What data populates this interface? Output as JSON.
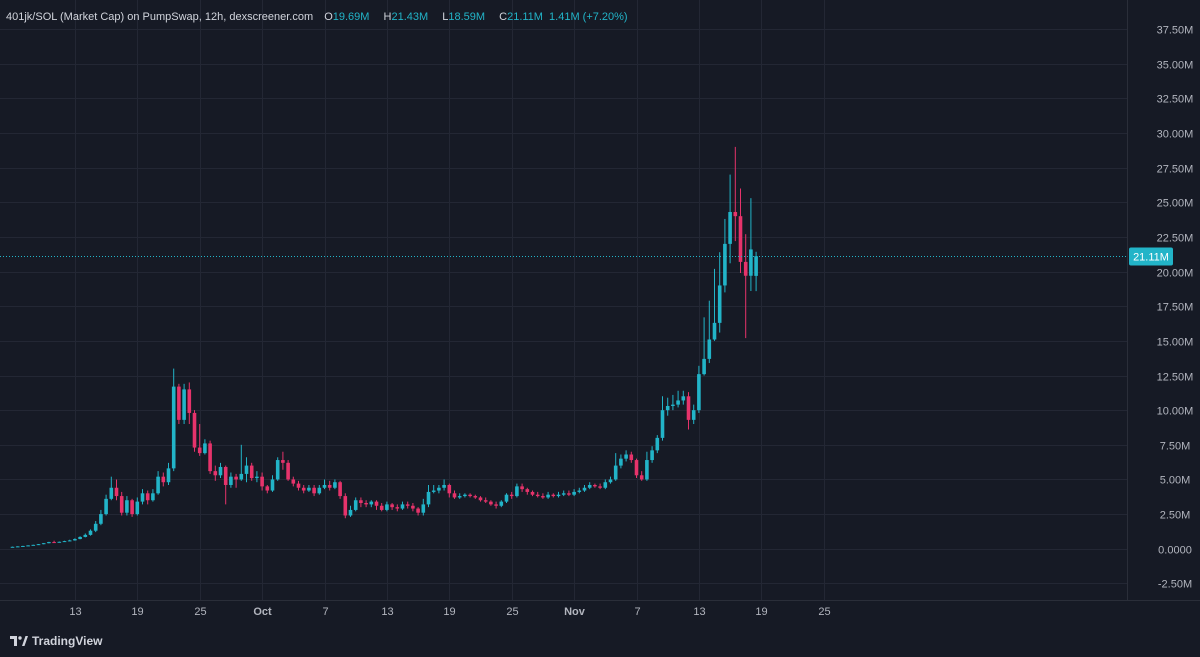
{
  "legend": {
    "symbol": "401jk/SOL (Market Cap) on PumpSwap, 12h, dexscreener.com",
    "o_label": "O",
    "o_value": "19.69M",
    "h_label": "H",
    "h_value": "21.43M",
    "l_label": "L",
    "l_value": "18.59M",
    "c_label": "C",
    "c_value": "21.11M",
    "change": "1.41M (+7.20%)"
  },
  "brand": {
    "name": "TradingView",
    "icon": "tradingview-logo-icon"
  },
  "colors": {
    "background": "#161a25",
    "grid": "#232734",
    "text": "#b2b5be",
    "up": "#22b4c8",
    "down": "#e6336b",
    "price_line": "#22b4c8"
  },
  "chart_data": {
    "type": "candlestick",
    "interval": "12h",
    "units": "market cap, millions",
    "y_axis": {
      "ylim": [
        -3.7,
        39.6
      ],
      "ticks": [
        -2.5,
        0,
        2.5,
        5,
        7.5,
        10,
        12.5,
        15,
        17.5,
        20,
        22.5,
        25,
        27.5,
        30,
        32.5,
        35,
        37.5
      ],
      "tick_labels": [
        "-2.50M",
        "0.0000",
        "2.50M",
        "5.00M",
        "7.50M",
        "10.00M",
        "12.50M",
        "15.00M",
        "17.50M",
        "20.00M",
        "22.50M",
        "25.00M",
        "27.50M",
        "30.00M",
        "32.50M",
        "35.00M",
        "37.50M"
      ]
    },
    "x_axis": {
      "tick_labels": [
        "13",
        "19",
        "25",
        "Oct",
        "7",
        "13",
        "19",
        "25",
        "Nov",
        "7",
        "13",
        "19",
        "25"
      ],
      "tick_candle_index": [
        12,
        24,
        36,
        48,
        60,
        72,
        84,
        96,
        108,
        120,
        132,
        144,
        156
      ]
    },
    "last_price": {
      "value": 21.11,
      "label": "21.11M"
    },
    "grid": true,
    "candles": [
      [
        0.12,
        0.14,
        0.1,
        0.15
      ],
      [
        0.14,
        0.17,
        0.13,
        0.18
      ],
      [
        0.17,
        0.2,
        0.16,
        0.21
      ],
      [
        0.2,
        0.24,
        0.19,
        0.25
      ],
      [
        0.24,
        0.28,
        0.23,
        0.29
      ],
      [
        0.28,
        0.33,
        0.27,
        0.34
      ],
      [
        0.33,
        0.4,
        0.32,
        0.41
      ],
      [
        0.4,
        0.48,
        0.39,
        0.5
      ],
      [
        0.48,
        0.45,
        0.44,
        0.58
      ],
      [
        0.45,
        0.5,
        0.44,
        0.52
      ],
      [
        0.5,
        0.55,
        0.49,
        0.58
      ],
      [
        0.55,
        0.6,
        0.54,
        0.65
      ],
      [
        0.6,
        0.7,
        0.58,
        0.75
      ],
      [
        0.7,
        0.85,
        0.68,
        0.9
      ],
      [
        0.85,
        1.0,
        0.82,
        1.1
      ],
      [
        1.0,
        1.3,
        0.95,
        1.4
      ],
      [
        1.3,
        1.8,
        1.2,
        2.0
      ],
      [
        1.8,
        2.5,
        1.7,
        2.8
      ],
      [
        2.5,
        3.6,
        2.4,
        3.9
      ],
      [
        3.6,
        4.4,
        3.5,
        5.2
      ],
      [
        4.4,
        3.8,
        3.5,
        5.0
      ],
      [
        3.8,
        2.6,
        2.4,
        4.1
      ],
      [
        2.6,
        3.5,
        2.4,
        3.8
      ],
      [
        3.5,
        2.5,
        2.3,
        3.6
      ],
      [
        2.5,
        3.4,
        2.4,
        3.7
      ],
      [
        3.4,
        4.0,
        3.2,
        4.3
      ],
      [
        4.0,
        3.5,
        3.2,
        4.2
      ],
      [
        3.5,
        4.0,
        3.4,
        4.3
      ],
      [
        4.0,
        5.2,
        3.9,
        5.6
      ],
      [
        5.2,
        4.8,
        4.5,
        5.5
      ],
      [
        4.8,
        5.8,
        4.6,
        6.2
      ],
      [
        5.8,
        11.7,
        5.6,
        13.0
      ],
      [
        11.7,
        9.3,
        9.0,
        11.9
      ],
      [
        9.3,
        11.5,
        9.0,
        11.9
      ],
      [
        11.5,
        9.8,
        9.0,
        12.0
      ],
      [
        9.8,
        7.3,
        7.0,
        10.0
      ],
      [
        7.3,
        6.9,
        6.7,
        9.0
      ],
      [
        6.9,
        7.6,
        6.8,
        7.9
      ],
      [
        7.6,
        5.6,
        5.4,
        7.8
      ],
      [
        5.6,
        5.3,
        4.9,
        6.0
      ],
      [
        5.3,
        5.9,
        5.1,
        6.2
      ],
      [
        5.9,
        4.6,
        3.2,
        6.0
      ],
      [
        4.6,
        5.2,
        4.4,
        5.5
      ],
      [
        5.2,
        5.0,
        4.4,
        5.4
      ],
      [
        5.0,
        5.4,
        4.9,
        7.5
      ],
      [
        5.4,
        6.0,
        4.8,
        6.6
      ],
      [
        6.0,
        5.1,
        4.9,
        6.2
      ],
      [
        5.1,
        5.2,
        4.8,
        5.6
      ],
      [
        5.2,
        4.5,
        4.2,
        5.5
      ],
      [
        4.5,
        4.2,
        4.0,
        4.6
      ],
      [
        4.2,
        5.0,
        4.1,
        5.3
      ],
      [
        5.0,
        6.4,
        4.9,
        6.6
      ],
      [
        6.4,
        6.2,
        5.7,
        7.0
      ],
      [
        6.2,
        5.0,
        4.9,
        6.4
      ],
      [
        5.0,
        4.7,
        4.5,
        5.2
      ],
      [
        4.7,
        4.4,
        4.2,
        4.9
      ],
      [
        4.4,
        4.2,
        4.0,
        4.6
      ],
      [
        4.2,
        4.4,
        4.1,
        4.6
      ],
      [
        4.4,
        4.0,
        3.8,
        4.6
      ],
      [
        4.0,
        4.4,
        3.9,
        4.6
      ],
      [
        4.4,
        4.6,
        4.3,
        5.0
      ],
      [
        4.6,
        4.4,
        4.2,
        4.9
      ],
      [
        4.4,
        4.8,
        4.3,
        5.0
      ],
      [
        4.8,
        3.8,
        3.6,
        4.9
      ],
      [
        3.8,
        2.4,
        2.2,
        4.0
      ],
      [
        2.4,
        2.8,
        2.3,
        3.1
      ],
      [
        2.8,
        3.5,
        2.7,
        3.7
      ],
      [
        3.5,
        3.3,
        3.0,
        3.7
      ],
      [
        3.3,
        3.2,
        3.0,
        3.5
      ],
      [
        3.2,
        3.4,
        3.0,
        3.5
      ],
      [
        3.4,
        3.1,
        2.8,
        3.5
      ],
      [
        3.1,
        2.8,
        2.7,
        3.3
      ],
      [
        2.8,
        3.2,
        2.7,
        3.4
      ],
      [
        3.2,
        3.0,
        2.8,
        3.3
      ],
      [
        3.0,
        2.9,
        2.7,
        3.2
      ],
      [
        2.9,
        3.2,
        2.8,
        3.4
      ],
      [
        3.2,
        3.1,
        2.9,
        3.4
      ],
      [
        3.1,
        2.9,
        2.7,
        3.3
      ],
      [
        2.9,
        2.6,
        2.4,
        3.0
      ],
      [
        2.6,
        3.2,
        2.4,
        3.6
      ],
      [
        3.2,
        4.1,
        3.0,
        4.6
      ],
      [
        4.1,
        4.2,
        4.0,
        4.6
      ],
      [
        4.2,
        4.4,
        4.0,
        4.6
      ],
      [
        4.4,
        4.6,
        4.2,
        5.0
      ],
      [
        4.6,
        4.0,
        3.7,
        4.7
      ],
      [
        4.0,
        3.7,
        3.6,
        4.2
      ],
      [
        3.7,
        3.8,
        3.6,
        4.0
      ],
      [
        3.8,
        3.9,
        3.7,
        4.0
      ],
      [
        3.9,
        3.8,
        3.7,
        4.0
      ],
      [
        3.8,
        3.7,
        3.6,
        3.9
      ],
      [
        3.7,
        3.5,
        3.4,
        3.8
      ],
      [
        3.5,
        3.4,
        3.3,
        3.7
      ],
      [
        3.4,
        3.2,
        3.1,
        3.5
      ],
      [
        3.2,
        3.1,
        2.9,
        3.4
      ],
      [
        3.1,
        3.4,
        3.0,
        3.5
      ],
      [
        3.4,
        3.9,
        3.3,
        4.0
      ],
      [
        3.9,
        3.8,
        3.6,
        4.1
      ],
      [
        3.8,
        4.5,
        3.7,
        4.7
      ],
      [
        4.5,
        4.3,
        4.1,
        4.7
      ],
      [
        4.3,
        4.1,
        3.9,
        4.4
      ],
      [
        4.1,
        3.9,
        3.8,
        4.2
      ],
      [
        3.9,
        3.8,
        3.7,
        4.1
      ],
      [
        3.8,
        3.7,
        3.6,
        4.0
      ],
      [
        3.7,
        3.9,
        3.6,
        4.1
      ],
      [
        3.9,
        3.8,
        3.7,
        4.0
      ],
      [
        3.8,
        3.9,
        3.7,
        4.1
      ],
      [
        3.9,
        4.0,
        3.8,
        4.2
      ],
      [
        4.0,
        3.9,
        3.8,
        4.2
      ],
      [
        3.9,
        4.1,
        3.8,
        4.3
      ],
      [
        4.1,
        4.2,
        4.0,
        4.4
      ],
      [
        4.2,
        4.4,
        4.1,
        4.6
      ],
      [
        4.4,
        4.6,
        4.3,
        4.8
      ],
      [
        4.6,
        4.5,
        4.4,
        4.7
      ],
      [
        4.5,
        4.4,
        4.3,
        4.7
      ],
      [
        4.4,
        4.8,
        4.3,
        5.0
      ],
      [
        4.8,
        5.0,
        4.7,
        5.2
      ],
      [
        5.0,
        6.0,
        4.9,
        6.9
      ],
      [
        6.0,
        6.5,
        5.8,
        6.8
      ],
      [
        6.5,
        6.8,
        6.3,
        7.1
      ],
      [
        6.8,
        6.4,
        6.2,
        7.0
      ],
      [
        6.4,
        5.3,
        5.1,
        6.5
      ],
      [
        5.3,
        5.0,
        4.9,
        5.6
      ],
      [
        5.0,
        6.4,
        4.9,
        7.0
      ],
      [
        6.4,
        7.1,
        6.2,
        7.4
      ],
      [
        7.1,
        8.0,
        6.9,
        8.2
      ],
      [
        8.0,
        10.0,
        7.8,
        11.0
      ],
      [
        10.0,
        10.3,
        9.6,
        10.9
      ],
      [
        10.3,
        10.4,
        10.0,
        11.1
      ],
      [
        10.4,
        10.7,
        10.2,
        11.4
      ],
      [
        10.7,
        11.0,
        10.4,
        11.4
      ],
      [
        11.0,
        9.3,
        8.6,
        11.3
      ],
      [
        9.3,
        10.0,
        9.0,
        10.4
      ],
      [
        10.0,
        12.6,
        9.8,
        13.2
      ],
      [
        12.6,
        13.7,
        12.5,
        16.7
      ],
      [
        13.7,
        15.1,
        13.4,
        17.9
      ],
      [
        15.1,
        16.3,
        15.0,
        20.2
      ],
      [
        16.3,
        19.0,
        15.6,
        21.4
      ],
      [
        19.0,
        22.0,
        18.5,
        23.8
      ],
      [
        22.0,
        24.3,
        20.6,
        27.0
      ],
      [
        24.3,
        24.0,
        22.2,
        29.0
      ],
      [
        24.0,
        20.7,
        19.9,
        26.0
      ],
      [
        20.7,
        19.7,
        15.2,
        22.7
      ],
      [
        19.7,
        21.6,
        18.6,
        25.3
      ],
      [
        19.69,
        21.11,
        18.59,
        21.43
      ]
    ]
  }
}
